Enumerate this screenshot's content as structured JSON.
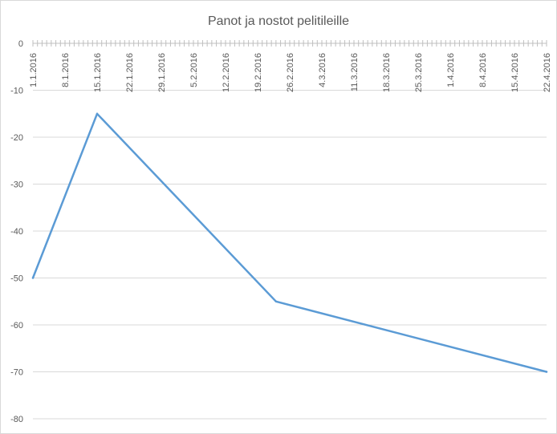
{
  "chart_data": {
    "type": "line",
    "title": "Panot ja nostot pelitileille",
    "xlabel": "",
    "ylabel": "",
    "x_range": [
      "1.1.2016",
      "22.4.2016"
    ],
    "ylim": [
      -80,
      0
    ],
    "yticks": [
      0,
      -10,
      -20,
      -30,
      -40,
      -50,
      -60,
      -70,
      -80
    ],
    "x_tick_labels": [
      "1.1.2016",
      "8.1.2016",
      "15.1.2016",
      "22.1.2016",
      "29.1.2016",
      "5.2.2016",
      "12.2.2016",
      "19.2.2016",
      "26.2.2016",
      "4.3.2016",
      "11.3.2016",
      "18.3.2016",
      "25.3.2016",
      "1.4.2016",
      "8.4.2016",
      "15.4.2016",
      "22.4.2016"
    ],
    "x_axis_position": "top",
    "grid": true,
    "series": [
      {
        "x": [
          "1.1.2016",
          "15.1.2016",
          "23.2.2016",
          "22.4.2016"
        ],
        "y": [
          -50,
          -15,
          -55,
          -70
        ]
      }
    ],
    "colors": {
      "line": "#5b9bd5",
      "grid": "#d9d9d9",
      "axis": "#bfbfbf",
      "text": "#595959"
    }
  }
}
